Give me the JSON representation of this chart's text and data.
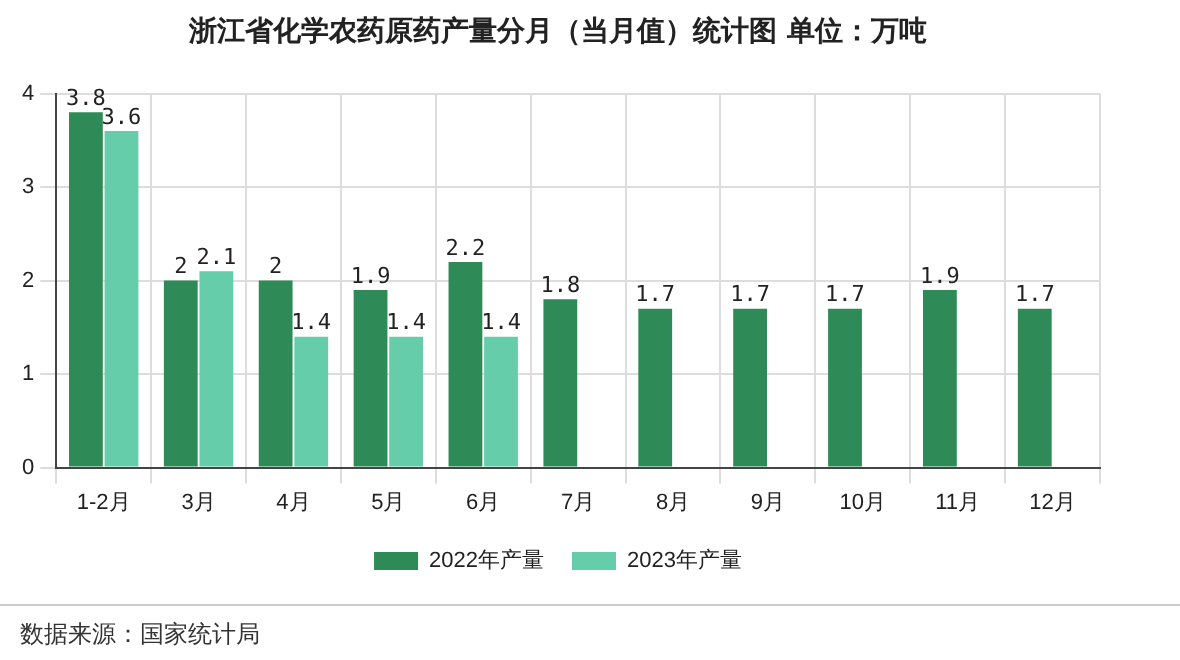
{
  "chart_data": {
    "type": "bar",
    "title": "浙江省化学农药原药产量分月（当月值）统计图 单位：万吨",
    "categories": [
      "1-2月",
      "3月",
      "4月",
      "5月",
      "6月",
      "7月",
      "8月",
      "9月",
      "10月",
      "11月",
      "12月"
    ],
    "series": [
      {
        "name": "2022年产量",
        "color": "#2e8b57",
        "values": [
          3.8,
          2,
          2,
          1.9,
          2.2,
          1.8,
          1.7,
          1.7,
          1.7,
          1.9,
          1.7
        ]
      },
      {
        "name": "2023年产量",
        "color": "#66cdaa",
        "values": [
          3.6,
          2.1,
          1.4,
          1.4,
          1.4,
          null,
          null,
          null,
          null,
          null,
          null
        ]
      }
    ],
    "ylim": [
      0,
      4
    ],
    "yticks": [
      0,
      1,
      2,
      3,
      4
    ],
    "grid": true,
    "legend": "bottom",
    "data_labels": true,
    "annotations": [
      "数据来源：国家统计局"
    ]
  }
}
